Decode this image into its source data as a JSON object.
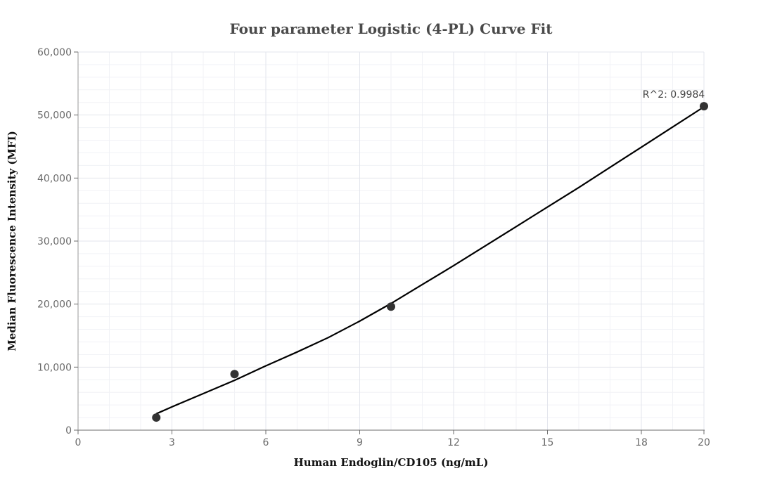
{
  "chart_data": {
    "type": "scatter",
    "title": "Four parameter Logistic (4-PL) Curve Fit",
    "xlabel": "Human Endoglin/CD105 (ng/mL)",
    "ylabel": "Median Fluorescence Intensity (MFI)",
    "xlim": [
      0,
      20
    ],
    "ylim": [
      0,
      60000
    ],
    "x_ticks": [
      0,
      3,
      6,
      9,
      12,
      15,
      18,
      20
    ],
    "y_ticks": [
      0,
      10000,
      20000,
      30000,
      40000,
      50000,
      60000
    ],
    "x_tick_labels": [
      "0",
      "3",
      "6",
      "9",
      "12",
      "15",
      "18",
      "20"
    ],
    "y_tick_labels": [
      "0",
      "10,000",
      "20,000",
      "30,000",
      "40,000",
      "50,000",
      "60,000"
    ],
    "grid": true,
    "legend": "none",
    "points": {
      "x": [
        2.5,
        5,
        10,
        20
      ],
      "y": [
        2000,
        8900,
        19600,
        51400
      ],
      "color": "#333333"
    },
    "fit_curve": {
      "x": [
        2.5,
        3,
        4,
        5,
        6,
        7,
        8,
        9,
        10,
        11,
        12,
        13,
        14,
        15,
        16,
        17,
        18,
        19,
        20
      ],
      "y": [
        2600,
        3700,
        5800,
        7900,
        10200,
        12400,
        14700,
        17300,
        20100,
        23100,
        26100,
        29200,
        32300,
        35400,
        38500,
        41700,
        44900,
        48100,
        51300
      ],
      "color": "#000000"
    },
    "annotations": [
      {
        "text": "R^2: 0.9984",
        "x": 20,
        "y": 51400
      }
    ]
  }
}
